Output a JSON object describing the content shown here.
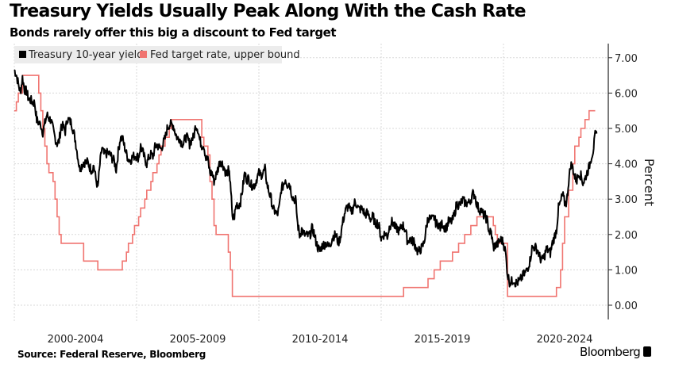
{
  "chart_data": {
    "type": "line",
    "title": "Treasury Yields Usually Peak Along With the Cash Rate",
    "subtitle": "Bonds rarely offer this big a discount to Fed target",
    "ylabel": "Percent",
    "ylim": [
      -0.6,
      7.4
    ],
    "yticks": [
      "7.00",
      "6.00",
      "5.00",
      "4.00",
      "3.00",
      "2.00",
      "1.00",
      "0.00"
    ],
    "xtick_labels": [
      "2000-2004",
      "2005-2009",
      "2010-2014",
      "2015-2019",
      "2020-2024"
    ],
    "grid": true,
    "legend_position": "top-left",
    "source": "Source: Federal Reserve, Bloomberg",
    "brand": "Bloomberg",
    "series": [
      {
        "name": "Treasury 10-year yield",
        "color": "#000000",
        "start": "2000-01",
        "frequency": "monthly",
        "values": [
          6.66,
          6.52,
          6.26,
          6.0,
          6.44,
          6.1,
          6.05,
          5.83,
          5.8,
          5.74,
          5.72,
          5.24,
          5.16,
          5.1,
          4.89,
          5.14,
          5.39,
          5.28,
          5.24,
          4.97,
          4.73,
          4.57,
          4.65,
          5.09,
          5.04,
          4.91,
          5.28,
          5.21,
          5.16,
          4.93,
          4.65,
          4.26,
          3.87,
          3.94,
          4.05,
          4.03,
          4.05,
          3.9,
          3.81,
          3.96,
          3.57,
          3.33,
          3.98,
          4.45,
          4.27,
          4.29,
          4.3,
          4.27,
          4.15,
          4.08,
          3.83,
          4.35,
          4.72,
          4.73,
          4.5,
          4.28,
          4.13,
          4.1,
          4.19,
          4.23,
          4.22,
          4.17,
          4.5,
          4.34,
          4.14,
          4.0,
          4.18,
          4.26,
          4.2,
          4.46,
          4.54,
          4.47,
          4.42,
          4.57,
          4.72,
          4.99,
          5.11,
          5.11,
          5.09,
          4.88,
          4.72,
          4.73,
          4.6,
          4.56,
          4.76,
          4.72,
          4.56,
          4.69,
          4.75,
          5.1,
          5.0,
          4.67,
          4.52,
          4.53,
          4.15,
          4.1,
          3.74,
          3.74,
          3.51,
          3.68,
          3.88,
          4.1,
          4.01,
          3.89,
          3.69,
          3.81,
          3.53,
          2.42,
          2.52,
          2.87,
          2.82,
          2.93,
          3.29,
          3.72,
          3.56,
          3.59,
          3.4,
          3.39,
          3.4,
          3.59,
          3.73,
          3.69,
          3.73,
          3.85,
          3.42,
          3.2,
          3.01,
          2.7,
          2.65,
          2.54,
          2.76,
          3.29,
          3.39,
          3.58,
          3.41,
          3.46,
          3.17,
          3.0,
          3.0,
          2.3,
          1.98,
          2.15,
          2.01,
          1.98,
          1.97,
          1.97,
          2.17,
          2.05,
          1.8,
          1.62,
          1.53,
          1.68,
          1.72,
          1.75,
          1.65,
          1.72,
          1.91,
          1.98,
          1.96,
          1.76,
          1.93,
          2.3,
          2.58,
          2.74,
          2.81,
          2.62,
          2.72,
          2.9,
          2.86,
          2.71,
          2.72,
          2.71,
          2.56,
          2.6,
          2.54,
          2.42,
          2.53,
          2.3,
          2.33,
          2.21,
          1.88,
          1.98,
          2.04,
          1.94,
          2.2,
          2.36,
          2.32,
          2.17,
          2.17,
          2.07,
          2.26,
          2.24,
          2.09,
          1.78,
          1.89,
          1.81,
          1.81,
          1.64,
          1.5,
          1.56,
          1.63,
          1.76,
          2.14,
          2.49,
          2.43,
          2.42,
          2.48,
          2.3,
          2.3,
          2.19,
          2.32,
          2.21,
          2.2,
          2.36,
          2.35,
          2.4,
          2.58,
          2.86,
          2.84,
          2.87,
          2.98,
          2.91,
          2.89,
          2.89,
          3.0,
          3.15,
          3.12,
          2.83,
          2.71,
          2.68,
          2.57,
          2.53,
          2.4,
          2.07,
          2.06,
          1.63,
          1.7,
          1.71,
          1.81,
          1.86,
          1.76,
          1.5,
          0.87,
          0.66,
          0.67,
          0.73,
          0.62,
          0.65,
          0.68,
          0.79,
          0.87,
          0.93,
          1.08,
          1.26,
          1.61,
          1.64,
          1.62,
          1.52,
          1.32,
          1.28,
          1.37,
          1.58,
          1.56,
          1.47,
          1.76,
          1.93,
          2.13,
          2.75,
          2.9,
          3.14,
          2.9,
          2.9,
          3.52,
          3.98,
          3.89,
          3.62,
          3.53,
          3.75,
          3.66,
          3.46,
          3.57,
          3.75,
          3.9,
          4.17,
          4.38,
          4.8
        ]
      },
      {
        "name": "Fed target rate, upper bound",
        "color": "#f07470",
        "steps": [
          [
            "2000-01",
            5.5
          ],
          [
            "2000-02",
            5.75
          ],
          [
            "2000-03",
            6.0
          ],
          [
            "2000-05",
            6.5
          ],
          [
            "2001-01",
            6.0
          ],
          [
            "2001-02",
            5.5
          ],
          [
            "2001-03",
            5.0
          ],
          [
            "2001-04",
            4.5
          ],
          [
            "2001-05",
            4.0
          ],
          [
            "2001-06",
            3.75
          ],
          [
            "2001-08",
            3.5
          ],
          [
            "2001-09",
            3.0
          ],
          [
            "2001-10",
            2.5
          ],
          [
            "2001-11",
            2.0
          ],
          [
            "2001-12",
            1.75
          ],
          [
            "2002-11",
            1.25
          ],
          [
            "2003-06",
            1.0
          ],
          [
            "2004-06",
            1.25
          ],
          [
            "2004-08",
            1.5
          ],
          [
            "2004-09",
            1.75
          ],
          [
            "2004-11",
            2.0
          ],
          [
            "2004-12",
            2.25
          ],
          [
            "2005-02",
            2.5
          ],
          [
            "2005-03",
            2.75
          ],
          [
            "2005-05",
            3.0
          ],
          [
            "2005-06",
            3.25
          ],
          [
            "2005-08",
            3.5
          ],
          [
            "2005-09",
            3.75
          ],
          [
            "2005-11",
            4.0
          ],
          [
            "2005-12",
            4.25
          ],
          [
            "2006-01",
            4.5
          ],
          [
            "2006-03",
            4.75
          ],
          [
            "2006-05",
            5.0
          ],
          [
            "2006-06",
            5.25
          ],
          [
            "2007-09",
            4.75
          ],
          [
            "2007-10",
            4.5
          ],
          [
            "2007-12",
            4.25
          ],
          [
            "2008-01",
            3.5
          ],
          [
            "2008-02",
            3.0
          ],
          [
            "2008-03",
            2.25
          ],
          [
            "2008-04",
            2.0
          ],
          [
            "2008-10",
            1.5
          ],
          [
            "2008-11",
            1.0
          ],
          [
            "2008-12",
            0.25
          ],
          [
            "2015-12",
            0.5
          ],
          [
            "2016-12",
            0.75
          ],
          [
            "2017-03",
            1.0
          ],
          [
            "2017-06",
            1.25
          ],
          [
            "2017-12",
            1.5
          ],
          [
            "2018-03",
            1.75
          ],
          [
            "2018-06",
            2.0
          ],
          [
            "2018-09",
            2.25
          ],
          [
            "2018-12",
            2.5
          ],
          [
            "2019-08",
            2.25
          ],
          [
            "2019-09",
            2.0
          ],
          [
            "2019-10",
            1.75
          ],
          [
            "2020-03",
            0.25
          ],
          [
            "2022-03",
            0.5
          ],
          [
            "2022-05",
            1.0
          ],
          [
            "2022-06",
            1.75
          ],
          [
            "2022-07",
            2.5
          ],
          [
            "2022-09",
            3.25
          ],
          [
            "2022-11",
            4.0
          ],
          [
            "2022-12",
            4.5
          ],
          [
            "2023-02",
            4.75
          ],
          [
            "2023-03",
            5.0
          ],
          [
            "2023-05",
            5.25
          ],
          [
            "2023-07",
            5.5
          ],
          [
            "2023-10",
            5.5
          ]
        ]
      }
    ]
  }
}
